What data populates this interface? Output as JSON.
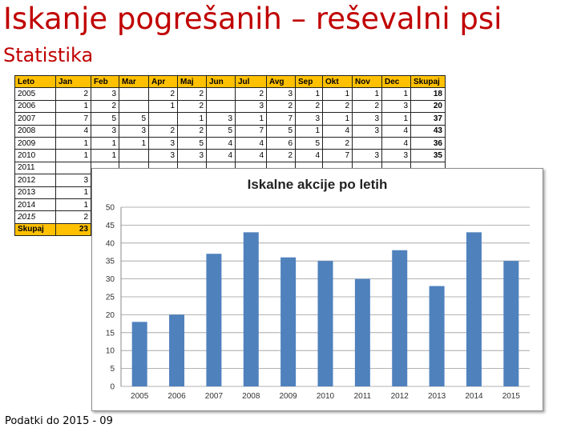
{
  "title": "Iskanje pogrešanih – reševalni psi",
  "subtitle": "Statistika",
  "table": {
    "headers": [
      "Leto",
      "Jan",
      "Feb",
      "Mar",
      "Apr",
      "Maj",
      "Jun",
      "Jul",
      "Avg",
      "Sep",
      "Okt",
      "Nov",
      "Dec",
      "Skupaj"
    ],
    "rows": [
      [
        "2005",
        "2",
        "3",
        "",
        "2",
        "2",
        "",
        "2",
        "3",
        "1",
        "1",
        "1",
        "1",
        "18"
      ],
      [
        "2006",
        "1",
        "2",
        "",
        "1",
        "2",
        "",
        "3",
        "2",
        "2",
        "2",
        "2",
        "3",
        "20"
      ],
      [
        "2007",
        "7",
        "5",
        "5",
        "",
        "1",
        "3",
        "1",
        "7",
        "3",
        "1",
        "3",
        "1",
        "37"
      ],
      [
        "2008",
        "4",
        "3",
        "3",
        "2",
        "2",
        "5",
        "7",
        "5",
        "1",
        "4",
        "3",
        "4",
        "43"
      ],
      [
        "2009",
        "1",
        "1",
        "1",
        "3",
        "5",
        "4",
        "4",
        "6",
        "5",
        "2",
        "",
        "4",
        "36"
      ],
      [
        "2010",
        "1",
        "1",
        "",
        "3",
        "3",
        "4",
        "4",
        "2",
        "4",
        "7",
        "3",
        "3",
        "35"
      ],
      [
        "2011",
        "",
        "",
        "",
        "",
        "",
        "",
        "",
        "",
        "",
        "",
        "",
        "",
        ""
      ],
      [
        "2012",
        "3",
        "",
        "",
        "",
        "",
        "",
        "",
        "",
        "",
        "",
        "",
        "",
        ""
      ],
      [
        "2013",
        "1",
        "",
        "",
        "",
        "",
        "",
        "",
        "",
        "",
        "",
        "",
        "",
        ""
      ],
      [
        "2014",
        "1",
        "",
        "",
        "",
        "",
        "",
        "",
        "",
        "",
        "",
        "",
        "",
        ""
      ],
      [
        "2015",
        "2",
        "",
        "",
        "",
        "",
        "",
        "",
        "",
        "",
        "",
        "",
        "",
        ""
      ]
    ],
    "sum_row": [
      "Skupaj",
      "23",
      "",
      "",
      "",
      "",
      "",
      "",
      "",
      "",
      "",
      "",
      "",
      ""
    ]
  },
  "chart_data": {
    "type": "bar",
    "title": "Iskalne akcije po letih",
    "categories": [
      "2005",
      "2006",
      "2007",
      "2008",
      "2009",
      "2010",
      "2011",
      "2012",
      "2013",
      "2014",
      "2015"
    ],
    "values": [
      18,
      20,
      37,
      43,
      36,
      35,
      30,
      38,
      28,
      43,
      35
    ],
    "ylim": [
      0,
      50
    ],
    "yticks": [
      0,
      5,
      10,
      15,
      20,
      25,
      30,
      35,
      40,
      45,
      50
    ],
    "xlabel": "",
    "ylabel": "",
    "grid": true,
    "legend": "none",
    "bar_color": "#4f81bd"
  },
  "footer": "Podatki do 2015 - 09",
  "colors": {
    "title": "#c00000",
    "header_fill": "#ffc000",
    "bar": "#4f81bd"
  }
}
